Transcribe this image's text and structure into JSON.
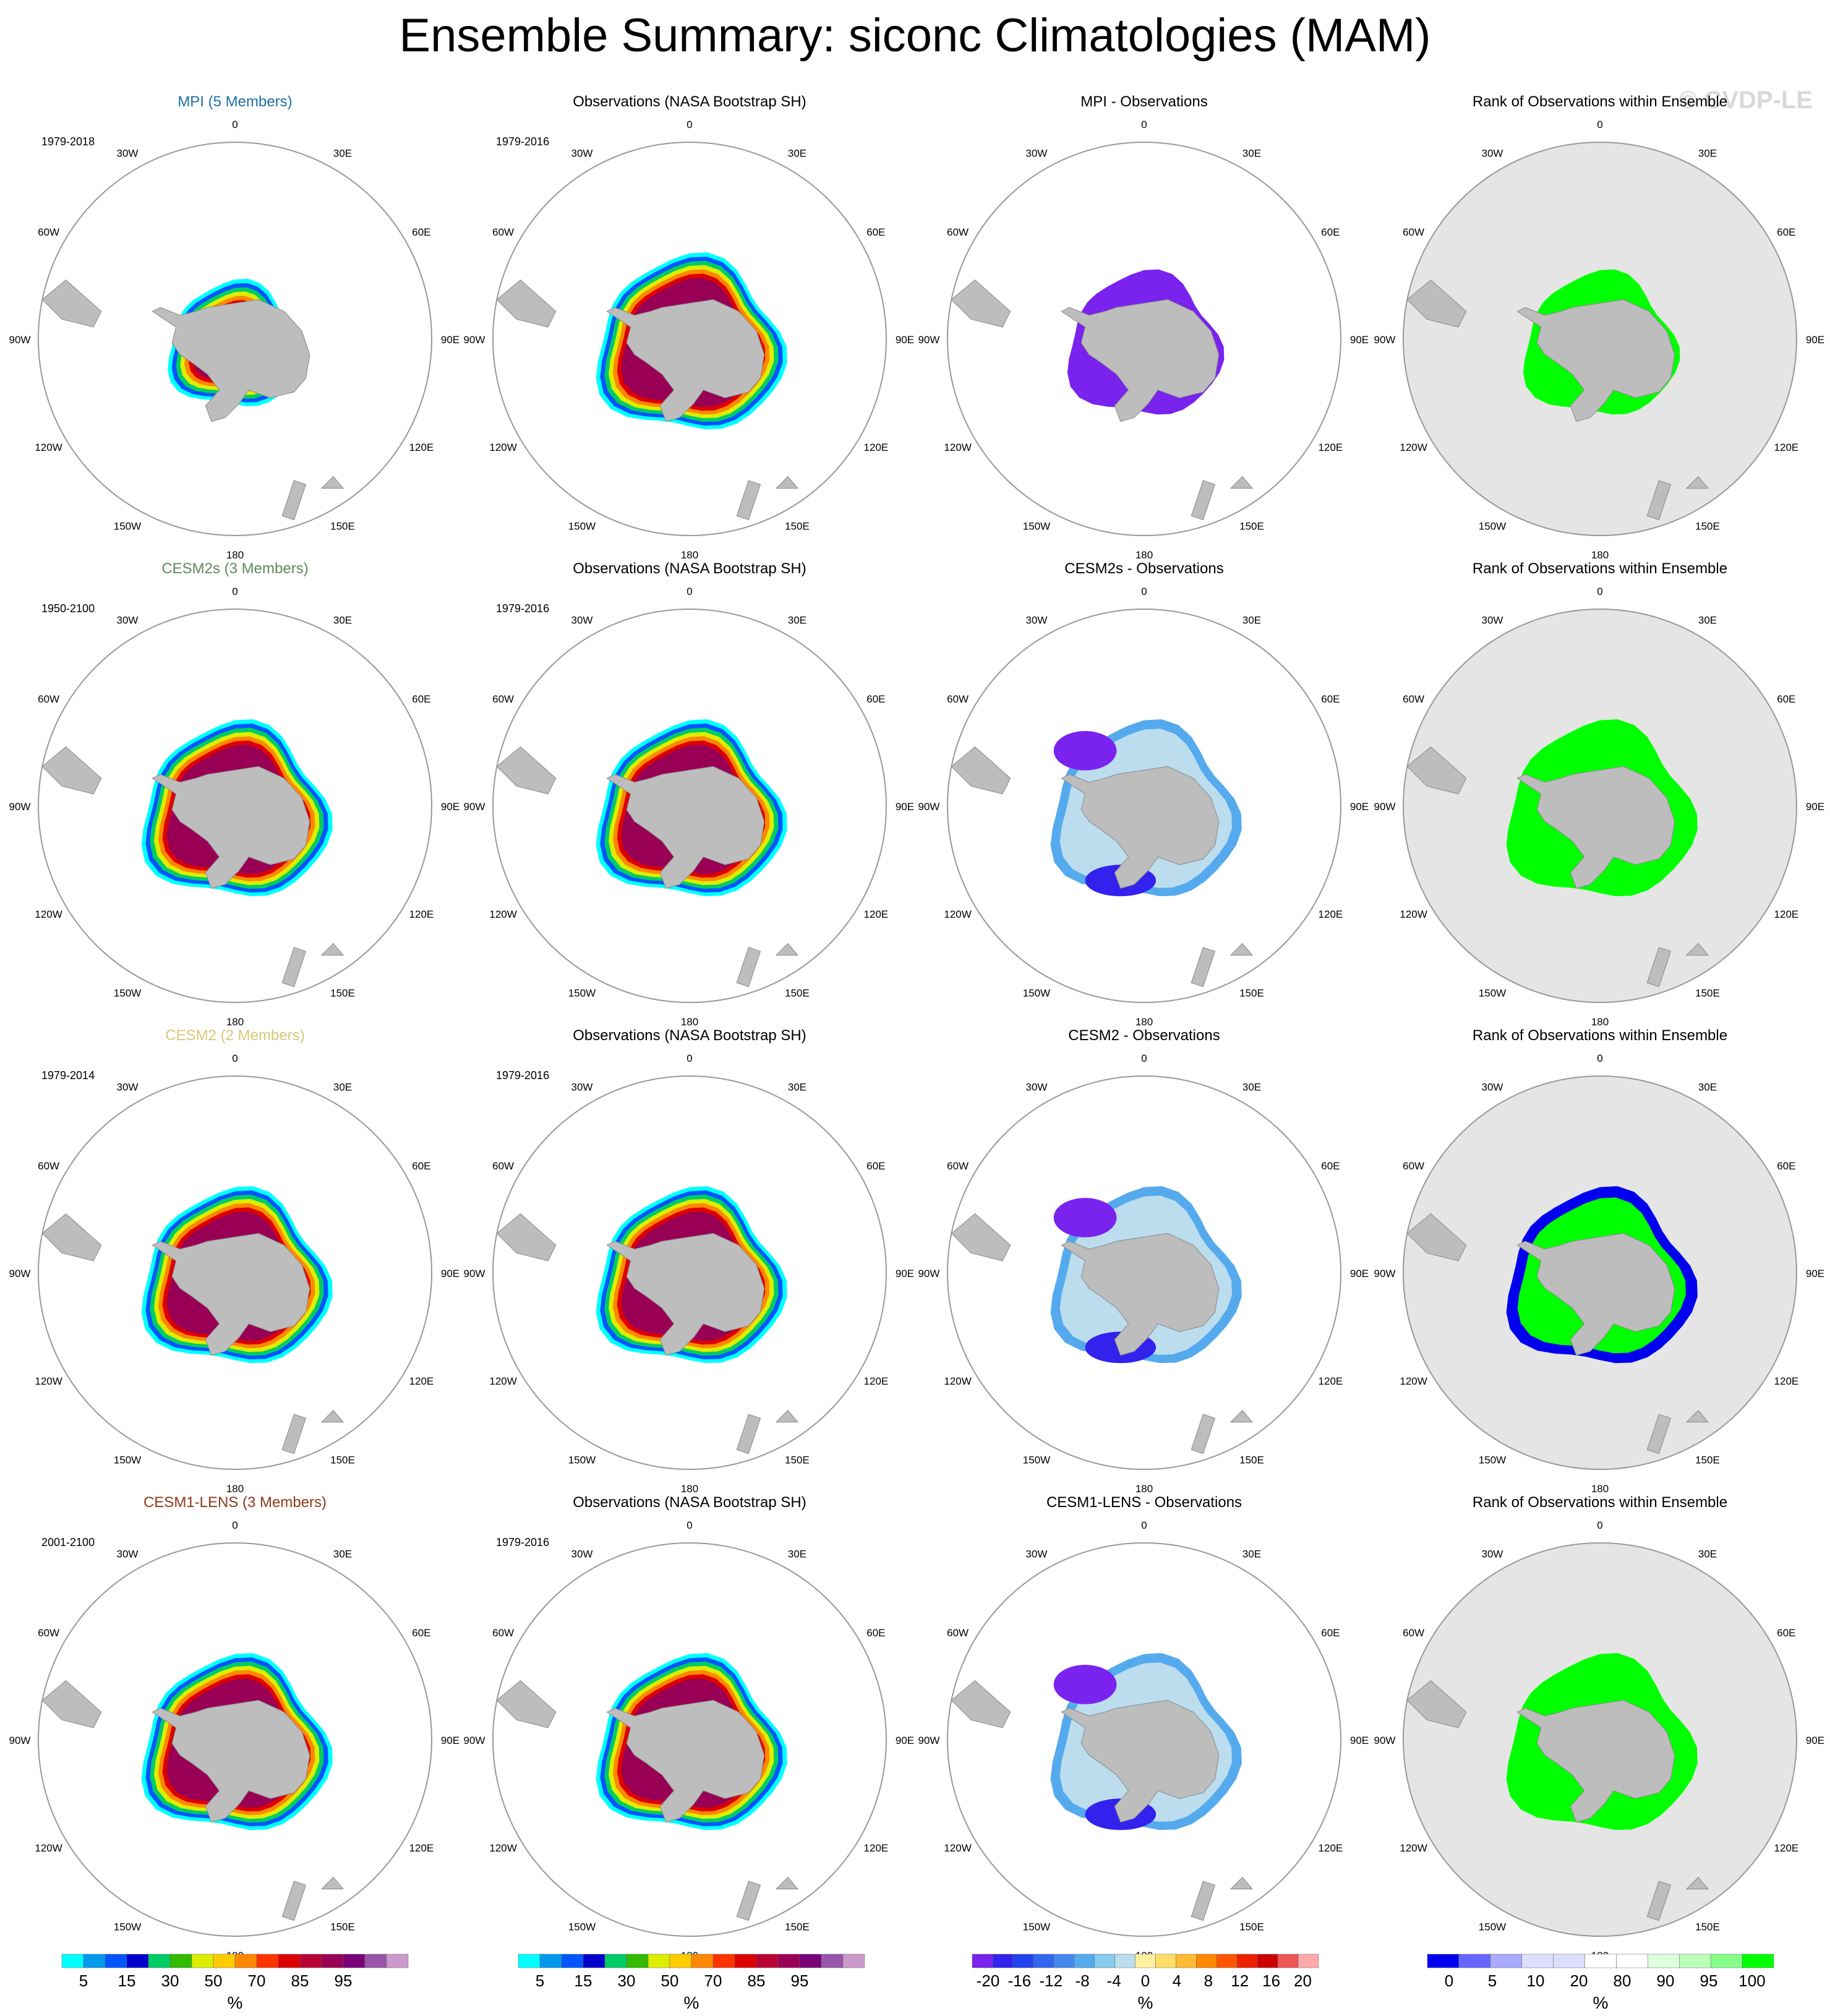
{
  "title": "Ensemble Summary: siconc Climatologies (MAM)",
  "watermark": "© CVDP-LE",
  "lon_labels": [
    "0",
    "30E",
    "60E",
    "90E",
    "120E",
    "150E",
    "180",
    "150W",
    "120W",
    "90W",
    "60W",
    "30W"
  ],
  "colors": {
    "land": "#bdbdbd",
    "ocean_bg": "#ffffff",
    "rank_bg": "#e5e5e5",
    "rank_high": "#00ff00",
    "rank_low": "#0000ee",
    "diff_low": "#7a22ee",
    "model_title_mpi": "#1f6fa3",
    "model_title_cesm2s": "#5c8a5c",
    "model_title_cesm2": "#d8c875",
    "model_title_cesm1lens": "#8b3a1a"
  },
  "rows": [
    {
      "model": {
        "title": "MPI (5 Members)",
        "years": "1979-2018",
        "color_key": "model_title_mpi"
      },
      "obs": {
        "title": "Observations (NASA Bootstrap SH)",
        "years": "1979-2016"
      },
      "diff": {
        "title": "MPI - Observations"
      },
      "rank": {
        "title": "Rank of Observations within Ensemble"
      }
    },
    {
      "model": {
        "title": "CESM2s (3 Members)",
        "years": "1950-2100",
        "color_key": "model_title_cesm2s"
      },
      "obs": {
        "title": "Observations (NASA Bootstrap SH)",
        "years": "1979-2016"
      },
      "diff": {
        "title": "CESM2s - Observations"
      },
      "rank": {
        "title": "Rank of Observations within Ensemble"
      }
    },
    {
      "model": {
        "title": "CESM2 (2 Members)",
        "years": "1979-2014",
        "color_key": "model_title_cesm2"
      },
      "obs": {
        "title": "Observations (NASA Bootstrap SH)",
        "years": "1979-2016"
      },
      "diff": {
        "title": "CESM2 - Observations"
      },
      "rank": {
        "title": "Rank of Observations within Ensemble"
      }
    },
    {
      "model": {
        "title": "CESM1-LENS (3 Members)",
        "years": "2001-2100",
        "color_key": "model_title_cesm1lens"
      },
      "obs": {
        "title": "Observations (NASA Bootstrap SH)",
        "years": "1979-2016"
      },
      "diff": {
        "title": "CESM1-LENS - Observations"
      },
      "rank": {
        "title": "Rank of Observations within Ensemble"
      }
    }
  ],
  "legends": {
    "siconc": {
      "unit": "%",
      "colors": [
        "#00ffff",
        "#0099ee",
        "#0055ff",
        "#0000cc",
        "#00cc66",
        "#33bb00",
        "#ddee00",
        "#ffcc00",
        "#ff8800",
        "#ff3300",
        "#dd0000",
        "#bb0033",
        "#990055",
        "#7a0077",
        "#9955aa",
        "#cc99cc"
      ],
      "ticks": [
        "5",
        "15",
        "30",
        "50",
        "70",
        "85",
        "95"
      ],
      "tick_boxes": [
        1,
        3,
        5,
        7,
        9,
        11,
        13
      ]
    },
    "diff": {
      "unit": "%",
      "colors": [
        "#7a22ee",
        "#3322ee",
        "#2244ee",
        "#3366ee",
        "#4488ee",
        "#55aaee",
        "#88ccee",
        "#bbddee",
        "#fff0a0",
        "#ffdd66",
        "#ffbb33",
        "#ff8800",
        "#ff5500",
        "#ee2200",
        "#cc0000",
        "#ee5555",
        "#ffaaaa"
      ],
      "ticks": [
        "-20",
        "-16",
        "-12",
        "-8",
        "-4",
        "0",
        "4",
        "8",
        "12",
        "16",
        "20"
      ]
    },
    "rank": {
      "unit": "%",
      "colors": [
        "#0000ee",
        "#6666ff",
        "#aaaaff",
        "#ddddff",
        "#ddddff",
        "#ffffff",
        "#ffffff",
        "#ddffdd",
        "#bbffbb",
        "#88ff88",
        "#00ff00"
      ],
      "ticks": [
        "0",
        "5",
        "10",
        "20",
        "80",
        "90",
        "95",
        "100"
      ]
    }
  }
}
